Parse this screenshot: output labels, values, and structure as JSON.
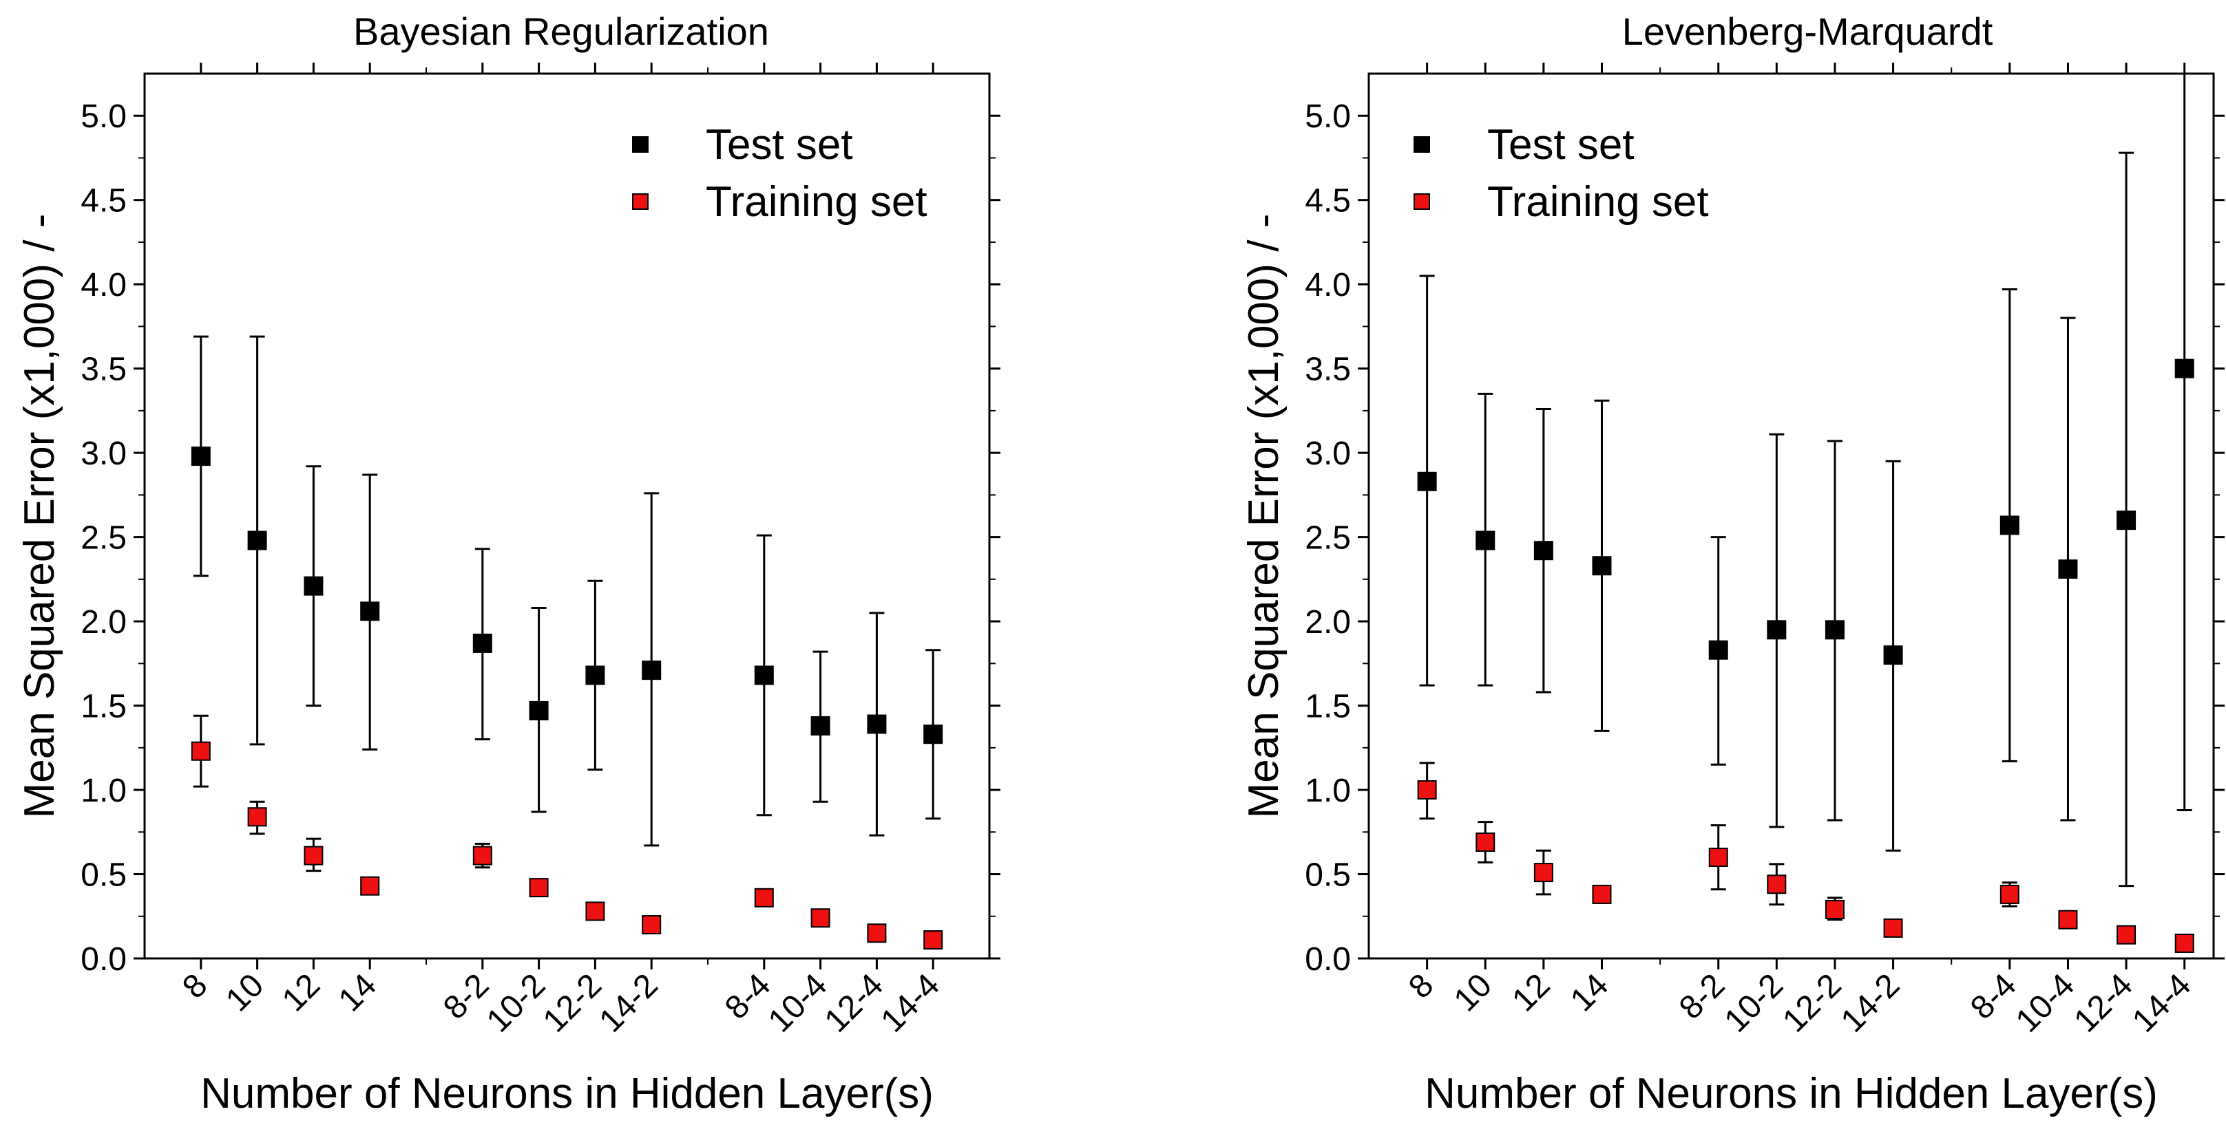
{
  "colors": {
    "test": "#000000",
    "training": "#ee1111",
    "axis": "#000000",
    "background": "#ffffff"
  },
  "legend": {
    "test_label": "Test set",
    "training_label": "Training set"
  },
  "chart_data": [
    {
      "type": "scatter",
      "title": "Bayesian Regularization",
      "xlabel": "Number of Neurons in Hidden Layer(s)",
      "ylabel": "Mean Squared Error (x1,000) / -",
      "ylim": [
        0.0,
        5.25
      ],
      "yticks": [
        0.0,
        0.5,
        1.0,
        1.5,
        2.0,
        2.5,
        3.0,
        3.5,
        4.0,
        4.5,
        5.0
      ],
      "yticklabels": [
        "0.0",
        "0.5",
        "1.0",
        "1.5",
        "2.0",
        "2.5",
        "3.0",
        "3.5",
        "4.0",
        "4.5",
        "5.0"
      ],
      "categories": [
        "8",
        "10",
        "12",
        "14",
        "8-2",
        "10-2",
        "12-2",
        "14-2",
        "8-4",
        "10-4",
        "12-4",
        "14-4"
      ],
      "x": [
        1,
        2,
        3,
        4,
        6,
        7,
        8,
        9,
        11,
        12,
        13,
        14
      ],
      "xlim": [
        0,
        15
      ],
      "legend_position": "top-right",
      "series": [
        {
          "name": "Test set",
          "values": [
            2.98,
            2.48,
            2.21,
            2.06,
            1.87,
            1.47,
            1.68,
            1.71,
            1.68,
            1.38,
            1.39,
            1.33
          ],
          "err_low": [
            2.27,
            1.27,
            1.5,
            1.24,
            1.3,
            0.87,
            1.12,
            0.67,
            0.85,
            0.93,
            0.73,
            0.83
          ],
          "err_high": [
            3.69,
            3.69,
            2.92,
            2.87,
            2.43,
            2.08,
            2.24,
            2.76,
            2.51,
            1.82,
            2.05,
            1.83
          ]
        },
        {
          "name": "Training set",
          "values": [
            1.23,
            0.84,
            0.61,
            0.43,
            0.61,
            0.42,
            0.28,
            0.2,
            0.36,
            0.24,
            0.15,
            0.11
          ],
          "err_low": [
            1.02,
            0.74,
            0.52,
            0.39,
            0.54,
            0.38,
            0.24,
            0.16,
            0.34,
            0.2,
            0.11,
            0.07
          ],
          "err_high": [
            1.44,
            0.93,
            0.71,
            0.46,
            0.68,
            0.46,
            0.33,
            0.23,
            0.39,
            0.28,
            0.2,
            0.14
          ]
        }
      ]
    },
    {
      "type": "scatter",
      "title": "Levenberg-Marquardt",
      "xlabel": "Number of Neurons in Hidden Layer(s)",
      "ylabel": "Mean Squared Error (x1,000) / -",
      "ylim": [
        0.0,
        5.25
      ],
      "yticks": [
        0.0,
        0.5,
        1.0,
        1.5,
        2.0,
        2.5,
        3.0,
        3.5,
        4.0,
        4.5,
        5.0
      ],
      "yticklabels": [
        "0.0",
        "0.5",
        "1.0",
        "1.5",
        "2.0",
        "2.5",
        "3.0",
        "3.5",
        "4.0",
        "4.5",
        "5.0"
      ],
      "categories": [
        "8",
        "10",
        "12",
        "14",
        "8-2",
        "10-2",
        "12-2",
        "14-2",
        "8-4",
        "10-4",
        "12-4",
        "14-4"
      ],
      "x": [
        1,
        2,
        3,
        4,
        6,
        7,
        8,
        9,
        11,
        12,
        13,
        14
      ],
      "xlim": [
        0,
        14.5
      ],
      "legend_position": "top-left",
      "series": [
        {
          "name": "Test set",
          "values": [
            2.83,
            2.48,
            2.42,
            2.33,
            1.83,
            1.95,
            1.95,
            1.8,
            2.57,
            2.31,
            2.6,
            3.5
          ],
          "err_low": [
            1.62,
            1.62,
            1.58,
            1.35,
            1.15,
            0.78,
            0.82,
            0.64,
            1.17,
            0.82,
            0.43,
            0.88
          ],
          "err_high": [
            4.05,
            3.35,
            3.26,
            3.31,
            2.5,
            3.11,
            3.07,
            2.95,
            3.97,
            3.8,
            4.78,
            5.25
          ]
        },
        {
          "name": "Training set",
          "values": [
            1.0,
            0.69,
            0.51,
            0.38,
            0.6,
            0.44,
            0.29,
            0.18,
            0.38,
            0.23,
            0.14,
            0.09
          ],
          "err_low": [
            0.83,
            0.57,
            0.38,
            0.33,
            0.41,
            0.32,
            0.23,
            0.15,
            0.31,
            0.19,
            0.11,
            0.06
          ],
          "err_high": [
            1.16,
            0.81,
            0.64,
            0.42,
            0.79,
            0.56,
            0.36,
            0.21,
            0.45,
            0.27,
            0.18,
            0.13
          ]
        }
      ]
    }
  ]
}
